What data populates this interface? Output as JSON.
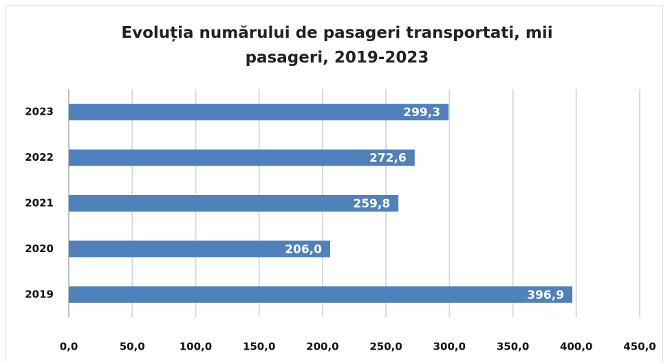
{
  "chart_data": {
    "type": "bar",
    "orientation": "horizontal",
    "title": "Evoluția numărului de pasageri transportati, mii pasageri, 2019-2023",
    "categories": [
      "2023",
      "2022",
      "2021",
      "2020",
      "2019"
    ],
    "values": [
      299.3,
      272.6,
      259.8,
      206.0,
      396.9
    ],
    "value_labels": [
      "299,3",
      "272,6",
      "259,8",
      "206,0",
      "396,9"
    ],
    "color": "#4f81bd",
    "xlim": [
      0,
      450
    ],
    "xticks": [
      {
        "value": 0,
        "label": "0,0"
      },
      {
        "value": 50,
        "label": "50,0"
      },
      {
        "value": 100,
        "label": "100,0"
      },
      {
        "value": 150,
        "label": "150,0"
      },
      {
        "value": 200,
        "label": "200,0"
      },
      {
        "value": 250,
        "label": "250,0"
      },
      {
        "value": 300,
        "label": "300,0"
      },
      {
        "value": 350,
        "label": "350,0"
      },
      {
        "value": 400,
        "label": "400,0"
      },
      {
        "value": 450,
        "label": "450,0"
      }
    ],
    "grid": true
  }
}
